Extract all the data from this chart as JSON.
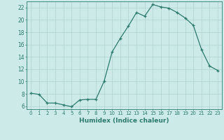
{
  "x": [
    0,
    1,
    2,
    3,
    4,
    5,
    6,
    7,
    8,
    9,
    10,
    11,
    12,
    13,
    14,
    15,
    16,
    17,
    18,
    19,
    20,
    21,
    22,
    23
  ],
  "y": [
    8.1,
    7.9,
    6.5,
    6.5,
    6.2,
    5.9,
    7.0,
    7.1,
    7.1,
    10.0,
    14.8,
    17.0,
    19.0,
    21.2,
    20.6,
    22.5,
    22.1,
    21.9,
    21.2,
    20.3,
    19.1,
    15.2,
    12.5,
    11.8
  ],
  "line_color": "#2d7a6e",
  "marker_size": 2.5,
  "bg_color": "#cceae7",
  "grid_color": "#b0d4d0",
  "spine_color": "#2d7a6e",
  "tick_color": "#2d7a6e",
  "label_color": "#2d7a6e",
  "xlabel": "Humidex (Indice chaleur)",
  "xlim": [
    -0.5,
    23.5
  ],
  "ylim": [
    5.5,
    23.0
  ],
  "yticks": [
    6,
    8,
    10,
    12,
    14,
    16,
    18,
    20,
    22
  ],
  "xticks": [
    0,
    1,
    2,
    3,
    4,
    5,
    6,
    7,
    8,
    9,
    10,
    11,
    12,
    13,
    14,
    15,
    16,
    17,
    18,
    19,
    20,
    21,
    22,
    23
  ],
  "xtick_labels": [
    "0",
    "1",
    "2",
    "3",
    "4",
    "5",
    "6",
    "7",
    "8",
    "9",
    "10",
    "11",
    "12",
    "13",
    "14",
    "15",
    "16",
    "17",
    "18",
    "19",
    "20",
    "21",
    "22",
    "23"
  ]
}
